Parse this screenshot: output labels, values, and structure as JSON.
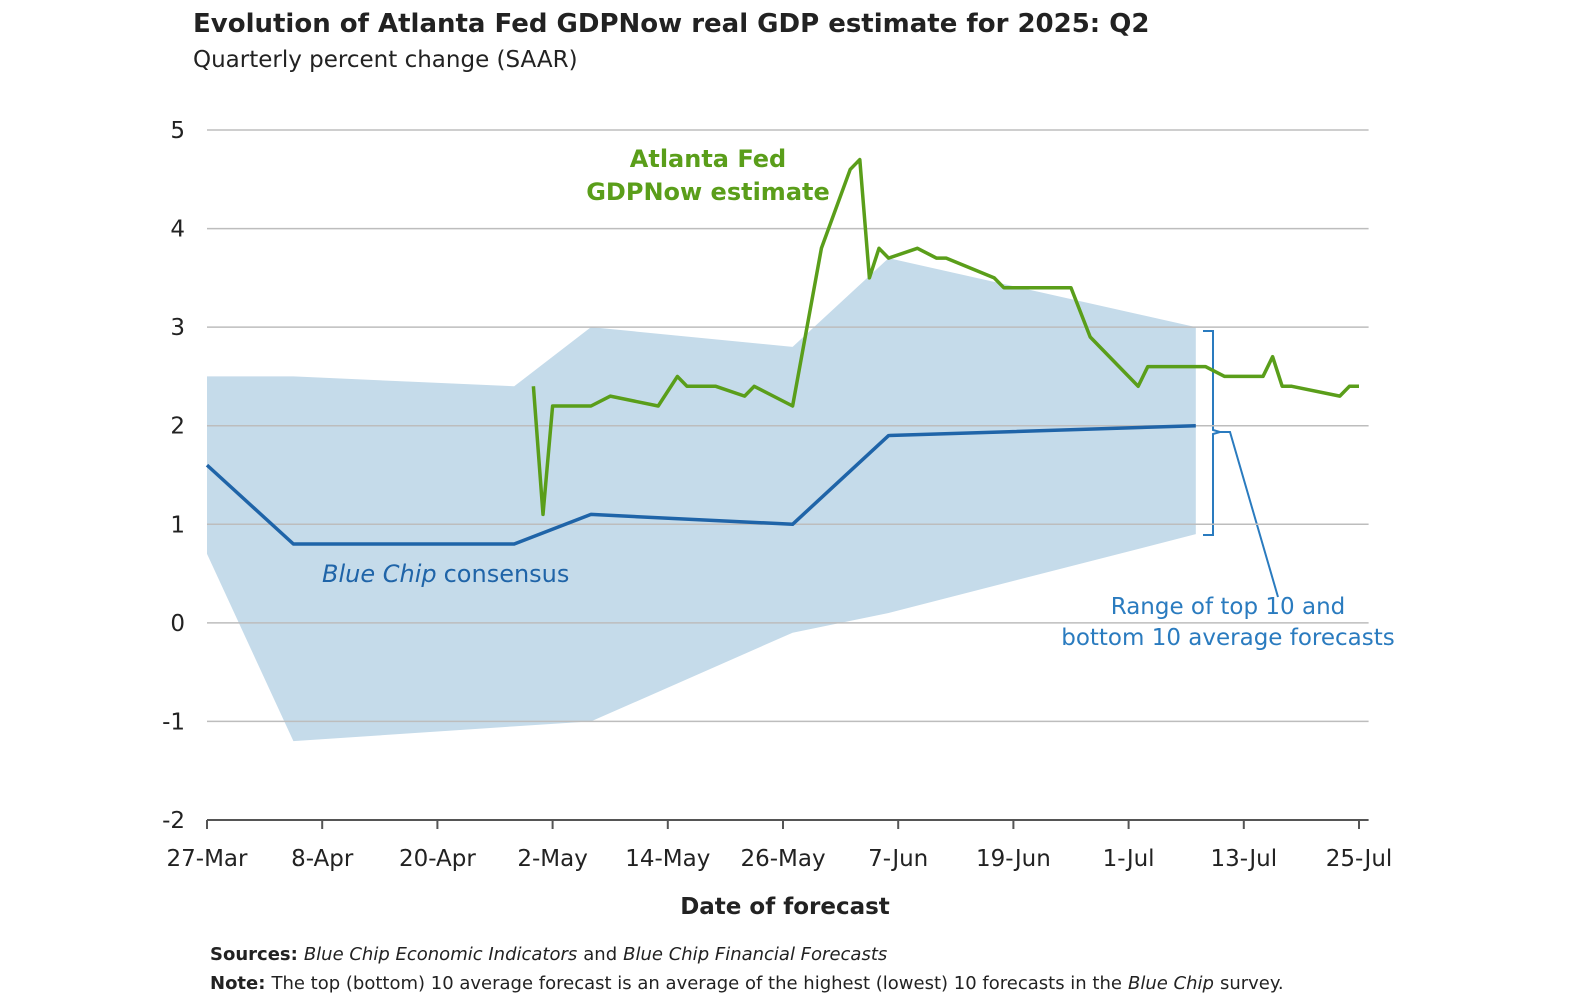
{
  "chart_data": {
    "type": "line",
    "title": "Evolution of Atlanta Fed GDPNow real GDP estimate for 2025: Q2",
    "subtitle": "Quarterly percent change (SAAR)",
    "xlabel": "Date of forecast",
    "xlim": [
      "03-27",
      "07-26"
    ],
    "xticks": [
      {
        "value": "03-27",
        "label": "27-Mar"
      },
      {
        "value": "04-08",
        "label": "8-Apr"
      },
      {
        "value": "04-20",
        "label": "20-Apr"
      },
      {
        "value": "05-02",
        "label": "2-May"
      },
      {
        "value": "05-14",
        "label": "14-May"
      },
      {
        "value": "05-26",
        "label": "26-May"
      },
      {
        "value": "06-07",
        "label": "7-Jun"
      },
      {
        "value": "06-19",
        "label": "19-Jun"
      },
      {
        "value": "07-01",
        "label": "1-Jul"
      },
      {
        "value": "07-13",
        "label": "13-Jul"
      },
      {
        "value": "07-25",
        "label": "25-Jul"
      }
    ],
    "ylim": [
      -2,
      5
    ],
    "yticks": [
      -2,
      -1,
      0,
      1,
      2,
      3,
      4,
      5
    ],
    "grid": true,
    "series": [
      {
        "label": [
          {
            "text": "Atlanta Fed"
          },
          {
            "text": "GDPNow estimate"
          }
        ],
        "color": "#5a9e1a",
        "x": [
          "04-30",
          "05-01",
          "05-02",
          "05-06",
          "05-08",
          "05-13",
          "05-15",
          "05-16",
          "05-19",
          "05-22",
          "05-23",
          "05-27",
          "05-30",
          "06-02",
          "06-03",
          "06-04",
          "06-05",
          "06-06",
          "06-09",
          "06-11",
          "06-12",
          "06-17",
          "06-18",
          "06-25",
          "06-27",
          "07-02",
          "07-03",
          "07-09",
          "07-11",
          "07-15",
          "07-16",
          "07-17",
          "07-18",
          "07-23",
          "07-24",
          "07-25"
        ],
        "values": [
          2.4,
          1.1,
          2.2,
          2.2,
          2.3,
          2.2,
          2.5,
          2.4,
          2.4,
          2.3,
          2.4,
          2.2,
          3.8,
          4.6,
          4.7,
          3.5,
          3.8,
          3.7,
          3.8,
          3.7,
          3.7,
          3.5,
          3.4,
          3.4,
          2.9,
          2.4,
          2.6,
          2.6,
          2.5,
          2.5,
          2.7,
          2.4,
          2.4,
          2.3,
          2.4,
          2.4
        ]
      },
      {
        "label": [
          {
            "text": "Blue Chip",
            "italic": true
          },
          {
            "text": "consensus"
          }
        ],
        "color": "#1f64a8",
        "x": [
          "03-27",
          "04-05",
          "04-28",
          "05-06",
          "05-27",
          "06-06",
          "07-08"
        ],
        "values": [
          1.6,
          0.8,
          0.8,
          1.1,
          1.0,
          1.9,
          2.0
        ]
      }
    ],
    "range": {
      "label": [
        {
          "text": "Range of top 10 and"
        },
        {
          "text": "bottom 10 average forecasts"
        }
      ],
      "color": "#c5dbea",
      "x": [
        "03-27",
        "04-05",
        "04-28",
        "05-06",
        "05-27",
        "06-06",
        "07-08"
      ],
      "low": [
        0.7,
        -1.2,
        -1.05,
        -1.0,
        -0.1,
        0.1,
        0.9
      ],
      "high": [
        2.5,
        2.5,
        2.4,
        3.0,
        2.8,
        3.7,
        3.0
      ]
    }
  },
  "sources": [
    {
      "text": "Sources:",
      "bold": true
    },
    {
      "text": "Blue Chip Economic Indicators",
      "italic": true
    },
    {
      "text": "and"
    },
    {
      "text": "Blue Chip Financial Forecasts",
      "italic": true
    }
  ],
  "note": [
    {
      "text": "Note:",
      "bold": true
    },
    {
      "text": "The top (bottom) 10 average forecast is an average of the highest (lowest) 10 forecasts in the"
    },
    {
      "text": "Blue Chip",
      "italic": true
    },
    {
      "text": "survey."
    }
  ]
}
